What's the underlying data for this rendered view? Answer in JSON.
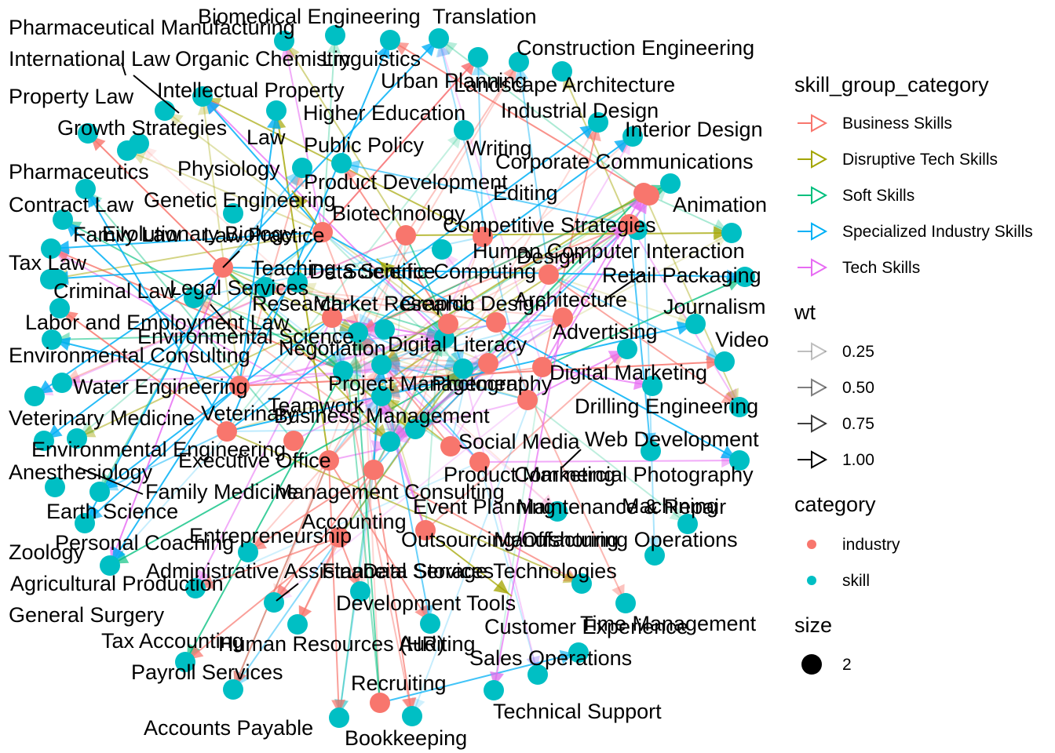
{
  "colors": {
    "industry": "#F8766D",
    "skill": "#00BFC4",
    "Business Skills": "#F8766D",
    "Disruptive Tech Skills": "#A3A500",
    "Soft Skills": "#00BF7D",
    "Specialized Industry Skills": "#00B0F6",
    "Tech Skills": "#E76BF3"
  },
  "legend": {
    "edge_color": {
      "title": "skill_group_category",
      "items": [
        "Business Skills",
        "Disruptive Tech Skills",
        "Soft Skills",
        "Specialized Industry Skills",
        "Tech Skills"
      ]
    },
    "wt": {
      "title": "wt",
      "items": [
        "0.25",
        "0.50",
        "0.75",
        "1.00"
      ]
    },
    "category": {
      "title": "category",
      "items": [
        "industry",
        "skill"
      ]
    },
    "size": {
      "title": "size",
      "items": [
        "2"
      ]
    }
  },
  "labels": [
    "Pharmaceutical Manufacturing",
    "Biomedical Engineering",
    "Translation",
    "International Law",
    "Organic Chemistry",
    "Linguistics",
    "Construction Engineering",
    "Urban Planning",
    "Landscape Architecture",
    "Property Law",
    "Intellectual Property",
    "Industrial Design",
    "Higher Education",
    "Growth Strategies",
    "Law",
    "Interior Design",
    "Public Policy",
    "Writing",
    "Pharmaceutics",
    "Physiology",
    "Corporate Communications",
    "Product Development",
    "Editing",
    "Contract Law",
    "Genetic Engineering",
    "Biotechnology",
    "Animation",
    "Competitive Strategies",
    "Family Law",
    "Evolutionary Biology",
    "Law Practice",
    "Human Computer Interaction",
    "Tax Law",
    "Teaching",
    "Data Science",
    "Scientific Computing",
    "Design",
    "Legal Services",
    "Retail Packaging",
    "Criminal Law",
    "Research",
    "Market Research",
    "Graphic Design",
    "Architecture",
    "Journalism",
    "Labor and Employment Law",
    "Environmental Science",
    "Advertising",
    "Environmental Consulting",
    "Negotiation",
    "Digital Literacy",
    "Video",
    "Digital Marketing",
    "Water Engineering",
    "Project Management",
    "Photography",
    "Teamwork",
    "Drilling Engineering",
    "Veterinary Medicine",
    "Veterinary",
    "Business Management",
    "Web Development",
    "Social Media",
    "Environmental Engineering",
    "Executive Office",
    "Anesthesiology",
    "Product Marketing",
    "Commercial Photography",
    "Family Medicine",
    "Management Consulting",
    "Machining",
    "Earth Science",
    "Event Planning",
    "Maintenance & Repair",
    "Accounting",
    "Entrepreneurship",
    "Personal Coaching",
    "Outsourcing/Offshoring",
    "Manufacturing Operations",
    "Zoology",
    "Administrative Assistance",
    "Financial Services",
    "Data Storage Technologies",
    "Agricultural Production",
    "Development Tools",
    "General Surgery",
    "Time Management",
    "Customer Experience",
    "Tax Accounting",
    "Human Resources (HR)",
    "Auditing",
    "Sales Operations",
    "Payroll Services",
    "Recruiting",
    "Technical Support",
    "Accounts Payable",
    "Bookkeeping"
  ]
}
